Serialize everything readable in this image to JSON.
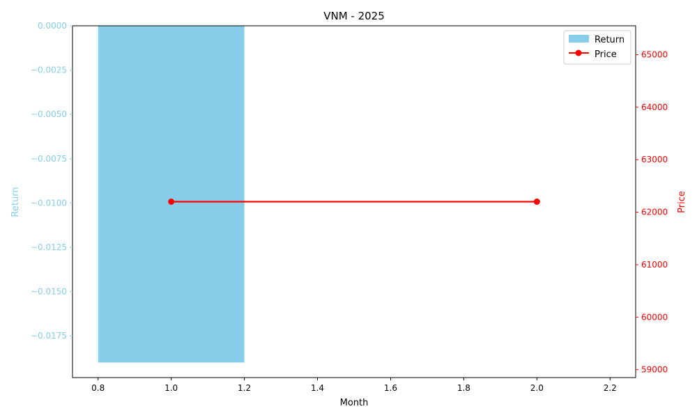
{
  "chart_data": {
    "type": "bar",
    "title": "VNM - 2025",
    "xlabel": "Month",
    "ylabel_left": "Return",
    "ylabel_right": "Price",
    "xlim": [
      0.73,
      2.27
    ],
    "xticks": [
      0.8,
      1.0,
      1.2,
      1.4,
      1.6,
      1.8,
      2.0,
      2.2
    ],
    "ylim_left": [
      -0.01985,
      0.0
    ],
    "yticks_left": [
      0.0,
      -0.0025,
      -0.005,
      -0.0075,
      -0.01,
      -0.0125,
      -0.015,
      -0.0175
    ],
    "ylim_right": [
      58850,
      65550
    ],
    "yticks_right": [
      59000,
      60000,
      61000,
      62000,
      63000,
      64000,
      65000
    ],
    "grid": false,
    "legend_position": "top-right",
    "series": [
      {
        "name": "Return",
        "kind": "bar",
        "axis": "left",
        "color": "#87CEEB",
        "x": [
          1
        ],
        "values": [
          -0.019
        ],
        "bar_width": 0.4
      },
      {
        "name": "Price",
        "kind": "line",
        "axis": "right",
        "color": "#ff0000",
        "marker": "circle",
        "x": [
          1,
          2
        ],
        "values": [
          62200,
          62200
        ]
      }
    ],
    "colors": {
      "left_axis": "#87CEEB",
      "right_axis": "#ff0000",
      "axis": "#000000"
    }
  }
}
